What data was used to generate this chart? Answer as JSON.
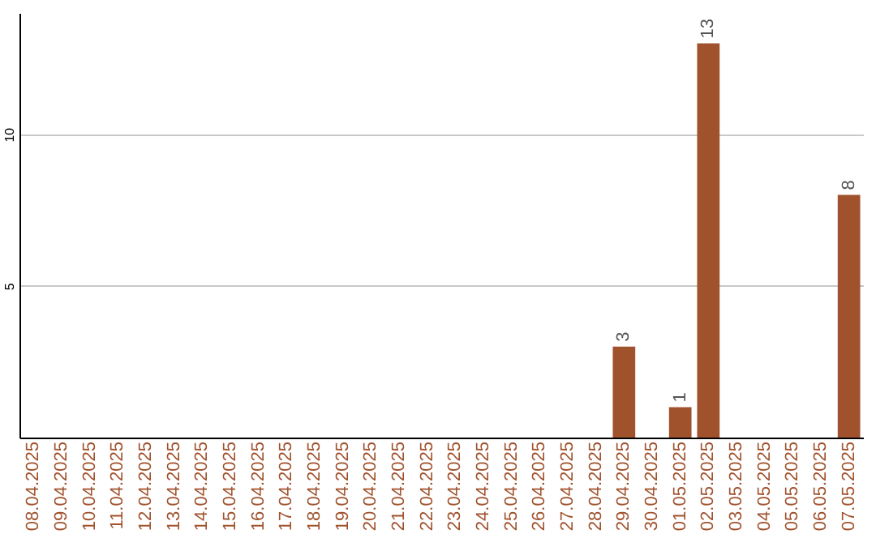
{
  "chart_data": {
    "type": "bar",
    "categories": [
      "08.04.2025",
      "09.04.2025",
      "10.04.2025",
      "11.04.2025",
      "12.04.2025",
      "13.04.2025",
      "14.04.2025",
      "15.04.2025",
      "16.04.2025",
      "17.04.2025",
      "18.04.2025",
      "19.04.2025",
      "20.04.2025",
      "21.04.2025",
      "22.04.2025",
      "23.04.2025",
      "24.04.2025",
      "25.04.2025",
      "26.04.2025",
      "27.04.2025",
      "28.04.2025",
      "29.04.2025",
      "30.04.2025",
      "01.05.2025",
      "02.05.2025",
      "03.05.2025",
      "04.05.2025",
      "05.05.2025",
      "06.05.2025",
      "07.05.2025"
    ],
    "values": [
      0,
      0,
      0,
      0,
      0,
      0,
      0,
      0,
      0,
      0,
      0,
      0,
      0,
      0,
      0,
      0,
      0,
      0,
      0,
      0,
      0,
      3,
      0,
      1,
      13,
      0,
      0,
      0,
      0,
      8
    ],
    "value_labels": [
      null,
      null,
      null,
      null,
      null,
      null,
      null,
      null,
      null,
      null,
      null,
      null,
      null,
      null,
      null,
      null,
      null,
      null,
      null,
      null,
      null,
      "3",
      null,
      "1",
      "13",
      null,
      null,
      null,
      null,
      "8"
    ],
    "color": "#a0522d",
    "ylim": [
      0,
      14
    ],
    "yticks": [
      5,
      10
    ],
    "grid": "y"
  }
}
